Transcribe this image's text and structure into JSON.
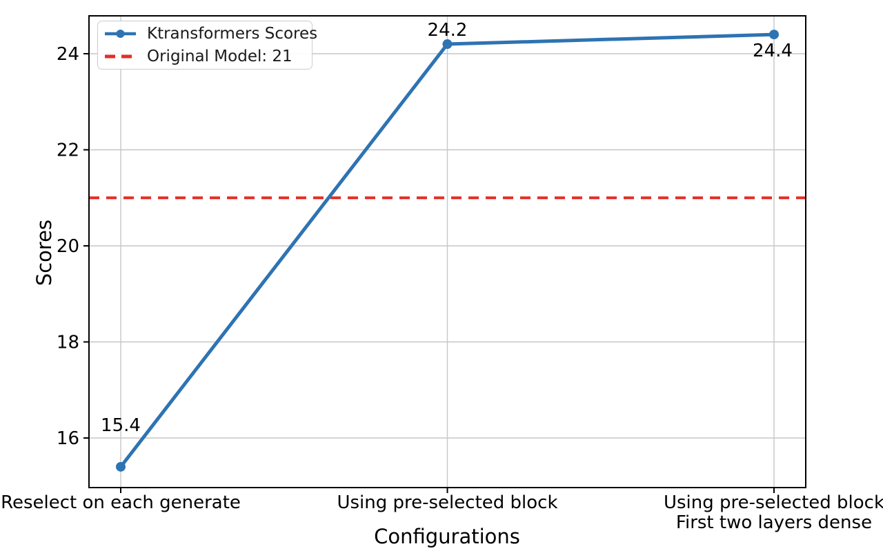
{
  "chart_data": {
    "type": "line",
    "title": "",
    "xlabel": "Configurations",
    "ylabel": "Scores",
    "categories": [
      "Reselect on each generate",
      "Using pre-selected block",
      "Using pre-selected block\nFirst two layers dense"
    ],
    "series": [
      {
        "name": "Ktransformers Scores",
        "values": [
          15.4,
          24.2,
          24.4
        ],
        "color": "#2e73b2",
        "marker": "circle"
      }
    ],
    "reference_line": {
      "label": "Original Model: 21",
      "value": 21,
      "color": "#e62d25",
      "style": "dashed"
    },
    "annotations": [
      "15.4",
      "24.2",
      "24.4"
    ],
    "yticks": [
      16,
      18,
      20,
      22,
      24
    ],
    "ylim": [
      15.0,
      24.8
    ],
    "grid": true,
    "legend_position": "upper left",
    "legend": [
      "Ktransformers Scores",
      "Original Model: 21"
    ]
  },
  "legend_ui": {
    "item1": "Ktransformers Scores",
    "item2": "Original Model: 21"
  }
}
